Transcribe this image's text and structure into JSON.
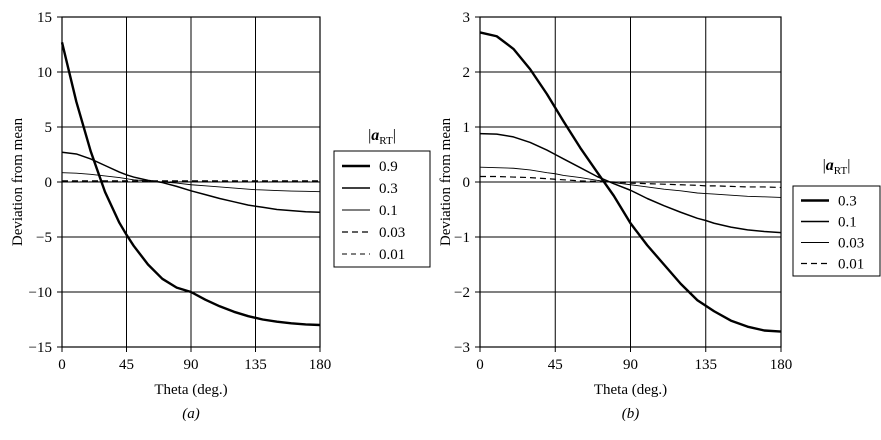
{
  "chart_data": [
    {
      "type": "line",
      "panel_label": "(a)",
      "xlabel": "Theta (deg.)",
      "ylabel": "Deviation from mean",
      "xlim": [
        0,
        180
      ],
      "ylim": [
        -15,
        15
      ],
      "xticks": [
        0,
        45,
        90,
        135,
        180
      ],
      "yticks": [
        15,
        10,
        5,
        0,
        -5,
        -10,
        -15
      ],
      "grid": true,
      "legend_title": "|aRT|",
      "legend_position": "right",
      "x": [
        0,
        10,
        20,
        30,
        40,
        45,
        50,
        60,
        70,
        80,
        90,
        100,
        110,
        120,
        130,
        135,
        140,
        150,
        160,
        170,
        180
      ],
      "series": [
        {
          "name": "0.9",
          "style": "thick-solid",
          "values": [
            12.7,
            7.3,
            2.8,
            -0.9,
            -3.7,
            -4.8,
            -5.8,
            -7.5,
            -8.8,
            -9.6,
            -10.0,
            -10.7,
            -11.3,
            -11.8,
            -12.2,
            -12.35,
            -12.5,
            -12.7,
            -12.85,
            -12.95,
            -13.0
          ]
        },
        {
          "name": "0.3",
          "style": "solid",
          "values": [
            2.7,
            2.55,
            2.1,
            1.5,
            0.9,
            0.65,
            0.45,
            0.15,
            -0.05,
            -0.4,
            -0.8,
            -1.15,
            -1.5,
            -1.8,
            -2.1,
            -2.2,
            -2.3,
            -2.5,
            -2.6,
            -2.7,
            -2.75
          ]
        },
        {
          "name": "0.1",
          "style": "thin-solid",
          "values": [
            0.85,
            0.8,
            0.7,
            0.55,
            0.4,
            0.3,
            0.2,
            0.1,
            0.0,
            -0.1,
            -0.25,
            -0.35,
            -0.45,
            -0.55,
            -0.65,
            -0.7,
            -0.72,
            -0.78,
            -0.82,
            -0.85,
            -0.88
          ]
        },
        {
          "name": "0.03",
          "style": "dashed",
          "values": [
            0.1,
            0.1,
            0.1,
            0.1,
            0.1,
            0.1,
            0.1,
            0.1,
            0.1,
            0.1,
            0.1,
            0.1,
            0.1,
            0.1,
            0.1,
            0.1,
            0.1,
            0.1,
            0.1,
            0.1,
            0.1
          ]
        },
        {
          "name": "0.01",
          "style": "thin-dashed",
          "values": [
            0.02,
            0.02,
            0.02,
            0.02,
            0.02,
            0.02,
            0.02,
            0.02,
            0.02,
            0.02,
            0.02,
            0.02,
            0.02,
            0.02,
            0.02,
            0.02,
            0.02,
            0.02,
            0.02,
            0.02,
            0.02
          ]
        }
      ]
    },
    {
      "type": "line",
      "panel_label": "(b)",
      "xlabel": "Theta (deg.)",
      "ylabel": "Deviation from mean",
      "xlim": [
        0,
        180
      ],
      "ylim": [
        -3,
        3
      ],
      "xticks": [
        0,
        45,
        90,
        135,
        180
      ],
      "yticks": [
        3,
        2,
        1,
        0,
        -1,
        -2,
        -3
      ],
      "grid": true,
      "legend_title": "|aRT|",
      "legend_position": "right",
      "x": [
        0,
        10,
        20,
        30,
        40,
        45,
        50,
        60,
        70,
        80,
        90,
        100,
        110,
        120,
        130,
        135,
        140,
        150,
        160,
        170,
        180
      ],
      "series": [
        {
          "name": "0.3",
          "style": "thick-solid",
          "values": [
            2.72,
            2.65,
            2.42,
            2.05,
            1.6,
            1.35,
            1.1,
            0.62,
            0.18,
            -0.25,
            -0.75,
            -1.15,
            -1.5,
            -1.85,
            -2.15,
            -2.25,
            -2.35,
            -2.52,
            -2.63,
            -2.7,
            -2.72
          ]
        },
        {
          "name": "0.1",
          "style": "solid",
          "values": [
            0.88,
            0.87,
            0.82,
            0.72,
            0.58,
            0.5,
            0.42,
            0.26,
            0.1,
            -0.03,
            -0.15,
            -0.3,
            -0.43,
            -0.55,
            -0.66,
            -0.7,
            -0.75,
            -0.82,
            -0.87,
            -0.9,
            -0.92
          ]
        },
        {
          "name": "0.03",
          "style": "thin-solid",
          "values": [
            0.27,
            0.26,
            0.25,
            0.22,
            0.17,
            0.15,
            0.12,
            0.08,
            0.03,
            -0.01,
            -0.05,
            -0.09,
            -0.13,
            -0.16,
            -0.2,
            -0.21,
            -0.22,
            -0.24,
            -0.26,
            -0.27,
            -0.28
          ]
        },
        {
          "name": "0.01",
          "style": "dashed",
          "values": [
            0.1,
            0.1,
            0.09,
            0.08,
            0.06,
            0.05,
            0.04,
            0.02,
            0.01,
            0.0,
            -0.02,
            -0.03,
            -0.04,
            -0.05,
            -0.06,
            -0.07,
            -0.07,
            -0.08,
            -0.09,
            -0.09,
            -0.1
          ]
        }
      ]
    }
  ]
}
